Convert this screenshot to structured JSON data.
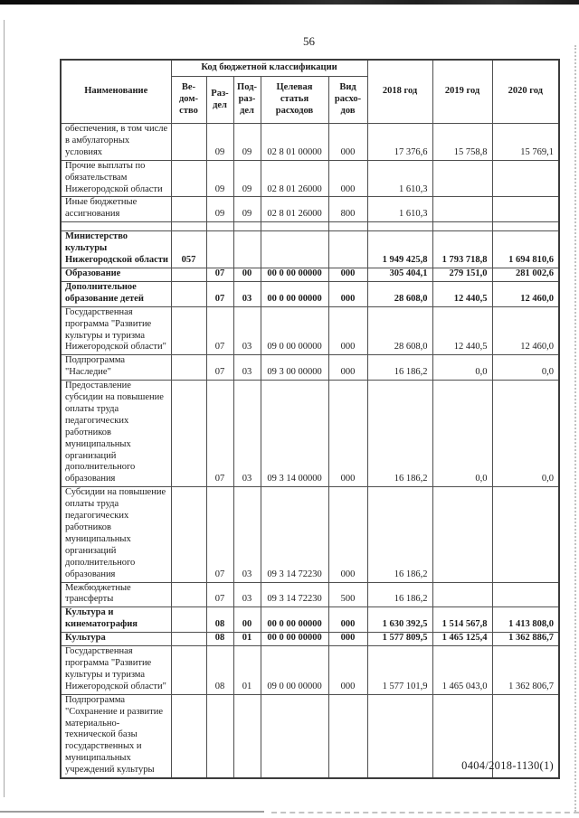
{
  "page": {
    "number": "56",
    "footer_code": "0404/2018-1130(1)"
  },
  "table": {
    "header": {
      "name": "Наименование",
      "code_group": "Код бюджетной классификации",
      "code_columns": [
        "Ве-\nдом-\nство",
        "Раз-\nдел",
        "Под-\nраз-\nдел",
        "Целевая\nстатья\nрасходов",
        "Вид\nрасхо-\nдов"
      ],
      "year_columns": [
        "2018 год",
        "2019 год",
        "2020 год"
      ]
    },
    "rows": [
      {
        "name": "обеспечения, в том числе\nв амбулаторных условиях",
        "ved": "",
        "razdel": "09",
        "podrazdel": "09",
        "target": "02 8 01 00000",
        "vid": "000",
        "y2018": "17 376,6",
        "y2019": "15 758,8",
        "y2020": "15 769,1",
        "bold": false,
        "spacer": false
      },
      {
        "name": "Прочие выплаты по\nобязательствам\nНижегородской области",
        "ved": "",
        "razdel": "09",
        "podrazdel": "09",
        "target": "02 8 01 26000",
        "vid": "000",
        "y2018": "1 610,3",
        "y2019": "",
        "y2020": "",
        "bold": false,
        "spacer": false
      },
      {
        "name": "Иные бюджетные\nассигнования",
        "ved": "",
        "razdel": "09",
        "podrazdel": "09",
        "target": "02 8 01 26000",
        "vid": "800",
        "y2018": "1 610,3",
        "y2019": "",
        "y2020": "",
        "bold": false,
        "spacer": false
      },
      {
        "name": "",
        "ved": "",
        "razdel": "",
        "podrazdel": "",
        "target": "",
        "vid": "",
        "y2018": "",
        "y2019": "",
        "y2020": "",
        "bold": false,
        "spacer": true
      },
      {
        "name": "Министерство\nкультуры\nНижегородской области",
        "ved": "057",
        "razdel": "",
        "podrazdel": "",
        "target": "",
        "vid": "",
        "y2018": "1 949 425,8",
        "y2019": "1 793 718,8",
        "y2020": "1 694 810,6",
        "bold": true,
        "spacer": false
      },
      {
        "name": "Образование",
        "ved": "",
        "razdel": "07",
        "podrazdel": "00",
        "target": "00 0 00 00000",
        "vid": "000",
        "y2018": "305 404,1",
        "y2019": "279 151,0",
        "y2020": "281 002,6",
        "bold": true,
        "spacer": false
      },
      {
        "name": "Дополнительное\nобразование детей",
        "ved": "",
        "razdel": "07",
        "podrazdel": "03",
        "target": "00 0 00 00000",
        "vid": "000",
        "y2018": "28 608,0",
        "y2019": "12 440,5",
        "y2020": "12 460,0",
        "bold": true,
        "spacer": false
      },
      {
        "name": "Государственная\nпрограмма \"Развитие\nкультуры и туризма\nНижегородской области\"",
        "ved": "",
        "razdel": "07",
        "podrazdel": "03",
        "target": "09 0 00 00000",
        "vid": "000",
        "y2018": "28 608,0",
        "y2019": "12 440,5",
        "y2020": "12 460,0",
        "bold": false,
        "spacer": false
      },
      {
        "name": "Подпрограмма\n\"Наследие\"",
        "ved": "",
        "razdel": "07",
        "podrazdel": "03",
        "target": "09 3 00 00000",
        "vid": "000",
        "y2018": "16 186,2",
        "y2019": "0,0",
        "y2020": "0,0",
        "bold": false,
        "spacer": false
      },
      {
        "name": "Предоставление\nсубсидии на повышение\nоплаты труда\nпедагогических\nработников\nмуниципальных\nорганизаций\nдополнительного\nобразования",
        "ved": "",
        "razdel": "07",
        "podrazdel": "03",
        "target": "09 3 14 00000",
        "vid": "000",
        "y2018": "16 186,2",
        "y2019": "0,0",
        "y2020": "0,0",
        "bold": false,
        "spacer": false
      },
      {
        "name": "Субсидии на повышение\nоплаты труда\nпедагогических\nработников\nмуниципальных\nорганизаций\nдополнительного\nобразования",
        "ved": "",
        "razdel": "07",
        "podrazdel": "03",
        "target": "09 3 14 72230",
        "vid": "000",
        "y2018": "16 186,2",
        "y2019": "",
        "y2020": "",
        "bold": false,
        "spacer": false
      },
      {
        "name": "Межбюджетные\nтрансферты",
        "ved": "",
        "razdel": "07",
        "podrazdel": "03",
        "target": "09 3 14 72230",
        "vid": "500",
        "y2018": "16 186,2",
        "y2019": "",
        "y2020": "",
        "bold": false,
        "spacer": false
      },
      {
        "name": "Культура и\nкинематография",
        "ved": "",
        "razdel": "08",
        "podrazdel": "00",
        "target": "00 0 00 00000",
        "vid": "000",
        "y2018": "1 630 392,5",
        "y2019": "1 514 567,8",
        "y2020": "1 413 808,0",
        "bold": true,
        "spacer": false
      },
      {
        "name": "Культура",
        "ved": "",
        "razdel": "08",
        "podrazdel": "01",
        "target": "00 0 00 00000",
        "vid": "000",
        "y2018": "1 577 809,5",
        "y2019": "1 465 125,4",
        "y2020": "1 362 886,7",
        "bold": true,
        "spacer": false
      },
      {
        "name": "Государственная\nпрограмма \"Развитие\nкультуры и туризма\nНижегородской области\"",
        "ved": "",
        "razdel": "08",
        "podrazdel": "01",
        "target": "09 0 00 00000",
        "vid": "000",
        "y2018": "1 577 101,9",
        "y2019": "1 465 043,0",
        "y2020": "1 362 806,7",
        "bold": false,
        "spacer": false
      },
      {
        "name": "Подпрограмма\n\"Сохранение и развитие\nматериально-\nтехнической базы\nгосударственных и\nмуниципальных\nучреждений культуры",
        "ved": "",
        "razdel": "",
        "podrazdel": "",
        "target": "",
        "vid": "",
        "y2018": "",
        "y2019": "",
        "y2020": "",
        "bold": false,
        "spacer": false
      }
    ]
  }
}
